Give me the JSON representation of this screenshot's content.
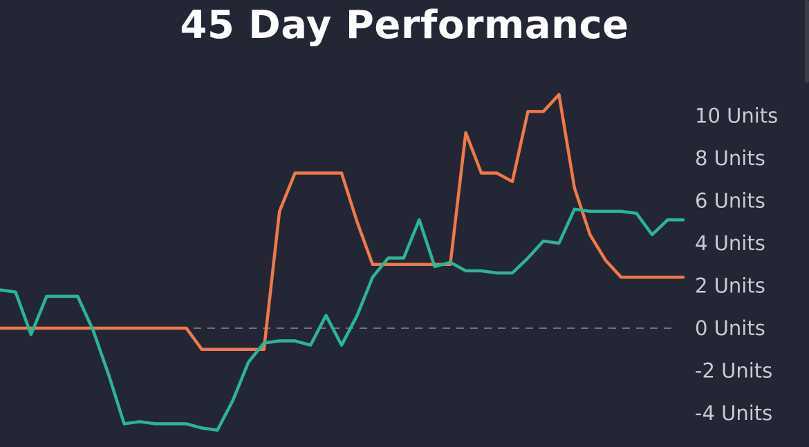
{
  "chart_data": {
    "type": "line",
    "title": "45 Day Performance",
    "xlabel": "",
    "ylabel": "",
    "ylim": [
      -4,
      10
    ],
    "yticks": [
      10,
      8,
      6,
      4,
      2,
      0,
      -2,
      -4
    ],
    "ytick_labels": [
      "10 Units",
      "8 Units",
      "6 Units",
      "4 Units",
      "2 Units",
      "0 Units",
      "-2 Units",
      "-4 Units"
    ],
    "grid": false,
    "zero_line": "dashed",
    "x": [
      1,
      2,
      3,
      4,
      5,
      6,
      7,
      8,
      9,
      10,
      11,
      12,
      13,
      14,
      15,
      16,
      17,
      18,
      19,
      20,
      21,
      22,
      23,
      24,
      25,
      26,
      27,
      28,
      29,
      30,
      31,
      32,
      33,
      34,
      35,
      36,
      37,
      38,
      39,
      40,
      41,
      42,
      43,
      44,
      45
    ],
    "series": [
      {
        "color": "#f0784a",
        "values": [
          0,
          0,
          0,
          0,
          0,
          0,
          0,
          0,
          0,
          0,
          0,
          0,
          0,
          -1,
          -1,
          -1,
          -1,
          -1,
          5.5,
          7.3,
          7.3,
          7.3,
          7.3,
          5,
          3,
          3,
          3,
          3,
          3,
          3,
          9.2,
          7.3,
          7.3,
          6.9,
          10.2,
          10.2,
          11,
          6.6,
          4.4,
          3.2,
          2.4,
          2.4,
          2.4,
          2.4,
          2.4
        ]
      },
      {
        "color": "#2cb594",
        "values": [
          1.8,
          1.7,
          -0.3,
          1.5,
          1.5,
          1.5,
          -0.1,
          -2.2,
          -4.5,
          -4.4,
          -4.5,
          -4.5,
          -4.5,
          -4.7,
          -4.8,
          -3.4,
          -1.6,
          -0.7,
          -0.6,
          -0.6,
          -0.8,
          0.6,
          -0.8,
          0.6,
          2.4,
          3.3,
          3.3,
          5.1,
          2.9,
          3.1,
          2.7,
          2.7,
          2.6,
          2.6,
          3.3,
          4.1,
          4,
          5.6,
          5.5,
          5.5,
          5.5,
          5.4,
          4.4,
          5.1,
          5.1
        ]
      }
    ]
  }
}
